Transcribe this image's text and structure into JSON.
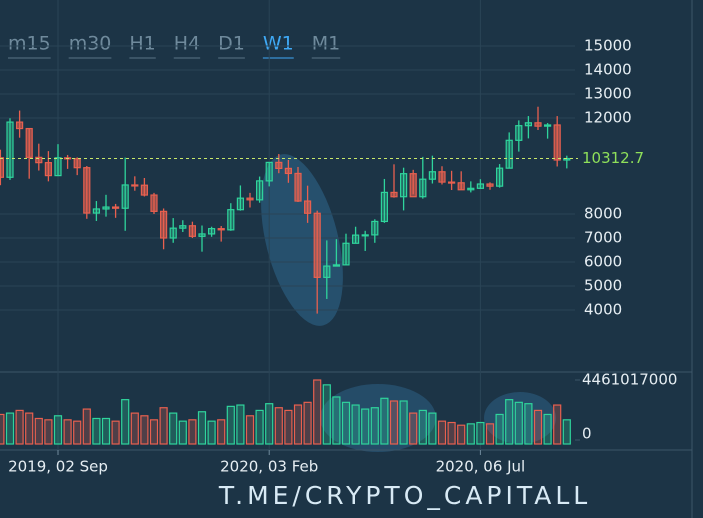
{
  "toolbar": {
    "timeframes": [
      "m15",
      "m30",
      "H1",
      "H4",
      "D1",
      "W1",
      "M1"
    ],
    "active": "W1"
  },
  "watermark": "T.ME/CRYPTO_CAPITALL",
  "chart_data": {
    "type": "candlestick",
    "categories": [
      null,
      null,
      null,
      null,
      null,
      null,
      "2019, 02 Sep",
      null,
      null,
      null,
      null,
      null,
      null,
      null,
      null,
      null,
      null,
      null,
      null,
      null,
      null,
      null,
      null,
      null,
      null,
      null,
      null,
      null,
      "2020, 03 Feb",
      null,
      null,
      null,
      null,
      null,
      null,
      null,
      null,
      null,
      null,
      null,
      null,
      null,
      null,
      null,
      null,
      null,
      null,
      null,
      null,
      null,
      "2020, 06 Jul",
      null,
      null,
      null,
      null,
      null,
      null,
      null,
      null,
      null
    ],
    "open": [
      10340,
      9530,
      11830,
      11560,
      10360,
      10140,
      9600,
      10340,
      10300,
      9930,
      8040,
      8210,
      8290,
      8240,
      9210,
      9200,
      8790,
      8110,
      7000,
      7410,
      7510,
      7070,
      7170,
      7390,
      7340,
      8180,
      8660,
      8590,
      9380,
      10150,
      9900,
      9690,
      8540,
      8030,
      5360,
      5830,
      5880,
      6780,
      7120,
      7130,
      7690,
      8900,
      8720,
      9680,
      8720,
      9450,
      9760,
      9330,
      9300,
      9010,
      9070,
      9250,
      9160,
      9910,
      11070,
      11680,
      11800,
      11660,
      11710,
      10250
    ],
    "high": [
      10680,
      11990,
      12310,
      11560,
      10930,
      10620,
      10910,
      10460,
      10360,
      10000,
      8540,
      8800,
      8420,
      10350,
      9570,
      9500,
      8880,
      8230,
      7830,
      7740,
      7680,
      7520,
      7470,
      7500,
      8450,
      9190,
      8880,
      9560,
      10160,
      10500,
      10250,
      9960,
      9180,
      8140,
      6900,
      6950,
      7180,
      7470,
      7300,
      7780,
      9460,
      10070,
      9930,
      9840,
      10380,
      10430,
      9990,
      9800,
      9780,
      9360,
      9450,
      9320,
      10080,
      11400,
      11900,
      12080,
      12470,
      11790,
      12080,
      10430
    ],
    "low": [
      9200,
      9420,
      11180,
      9470,
      9810,
      9360,
      9580,
      9880,
      9620,
      7800,
      7710,
      7890,
      7840,
      7300,
      8970,
      8730,
      8000,
      6530,
      6800,
      7250,
      7000,
      6430,
      7050,
      6850,
      7300,
      8140,
      8270,
      8470,
      9150,
      9700,
      9300,
      8500,
      7630,
      3850,
      4460,
      5830,
      5870,
      6780,
      6460,
      6800,
      7630,
      8680,
      8150,
      8820,
      8640,
      9270,
      9230,
      9000,
      9000,
      8900,
      9040,
      9010,
      9100,
      9900,
      10600,
      11150,
      11500,
      11140,
      9980,
      9900
    ],
    "close": [
      9530,
      11830,
      11560,
      10360,
      10140,
      9600,
      10340,
      10300,
      9930,
      8040,
      8210,
      8290,
      8240,
      9210,
      9200,
      8790,
      8110,
      7000,
      7410,
      7510,
      7070,
      7170,
      7390,
      7340,
      8180,
      8660,
      8590,
      9380,
      10150,
      9900,
      9690,
      8540,
      8030,
      5360,
      5830,
      5880,
      6780,
      7120,
      7130,
      7690,
      8900,
      8720,
      9680,
      8720,
      9450,
      9760,
      9330,
      9300,
      9010,
      9070,
      9250,
      9160,
      9910,
      11070,
      11680,
      11800,
      11660,
      11710,
      10250,
      10310
    ],
    "volume": [
      1900000000,
      2000000000,
      2200000000,
      2000000000,
      1600000000,
      1500000000,
      1800000000,
      1500000000,
      1400000000,
      2300000000,
      1600000000,
      1600000000,
      1400000000,
      3000000000,
      2000000000,
      1800000000,
      1500000000,
      2400000000,
      2000000000,
      1400000000,
      1500000000,
      2100000000,
      1400000000,
      1500000000,
      2500000000,
      2600000000,
      1800000000,
      2200000000,
      2700000000,
      2400000000,
      2200000000,
      2600000000,
      2800000000,
      4461017000,
      4100000000,
      3200000000,
      2800000000,
      2600000000,
      2300000000,
      2400000000,
      3100000000,
      2900000000,
      2900000000,
      2000000000,
      2200000000,
      2000000000,
      1400000000,
      1300000000,
      1100000000,
      1200000000,
      1300000000,
      1200000000,
      1900000000,
      3000000000,
      2800000000,
      2700000000,
      2200000000,
      1900000000,
      2600000000,
      1500000000
    ],
    "last_price": 10312.7,
    "ylim": [
      1500,
      16500
    ],
    "yticks": [
      4000,
      5000,
      6000,
      7000,
      8000,
      12000,
      13000,
      14000,
      15000
    ],
    "y2lim": [
      0,
      5056000000
    ],
    "y2ticks": [
      0,
      4461017000
    ],
    "up_color": "#2fd49c",
    "down_color": "#e8604f",
    "price_line_color": "#c9e86a",
    "grid": true
  }
}
